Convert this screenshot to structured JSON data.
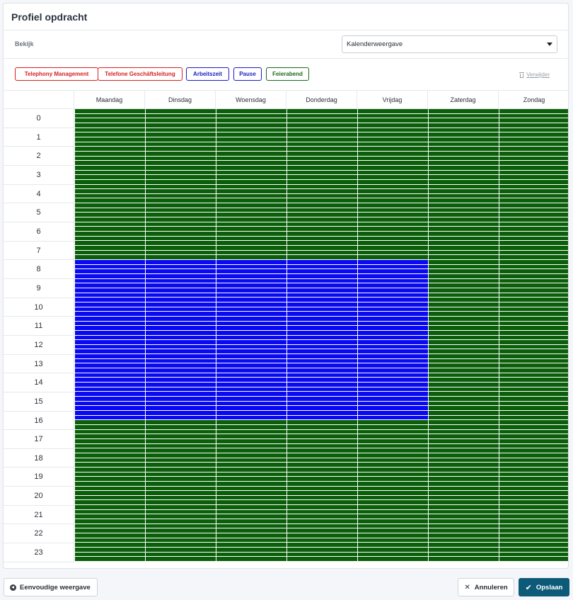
{
  "header": {
    "title": "Profiel opdracht"
  },
  "view": {
    "label": "Bekijk",
    "selected": "Kalenderweergave"
  },
  "legend": [
    {
      "label": "Telephony Management",
      "color": "#d62020"
    },
    {
      "label": "Telefone Geschäftsleitung",
      "color": "#d62020"
    },
    {
      "label": "Arbeitszeit",
      "color": "#1a1ac8"
    },
    {
      "label": "Pause",
      "color": "#1a1ac8"
    },
    {
      "label": "Feierabend",
      "color": "#1a6b1a"
    }
  ],
  "delete_label": "Verwijder",
  "days": [
    "Maandag",
    "Dinsdag",
    "Woensdag",
    "Donderdag",
    "Vrijdag",
    "Zaterdag",
    "Zondag"
  ],
  "hours": [
    "0",
    "1",
    "2",
    "3",
    "4",
    "5",
    "6",
    "7",
    "8",
    "9",
    "10",
    "11",
    "12",
    "13",
    "14",
    "15",
    "16",
    "17",
    "18",
    "19",
    "20",
    "21",
    "22",
    "23"
  ],
  "schedule": {
    "colors": {
      "work": "#0a0af0",
      "off": "#0b5f0b"
    },
    "work_days": [
      "Maandag",
      "Dinsdag",
      "Woensdag",
      "Donderdag",
      "Vrijdag"
    ],
    "work_start_hour": 8,
    "work_end_hour": 16.5,
    "slots_per_hour": 4
  },
  "footer": {
    "simple_view": "Eenvoudige weergave",
    "cancel": "Annuleren",
    "save": "Opslaan"
  }
}
